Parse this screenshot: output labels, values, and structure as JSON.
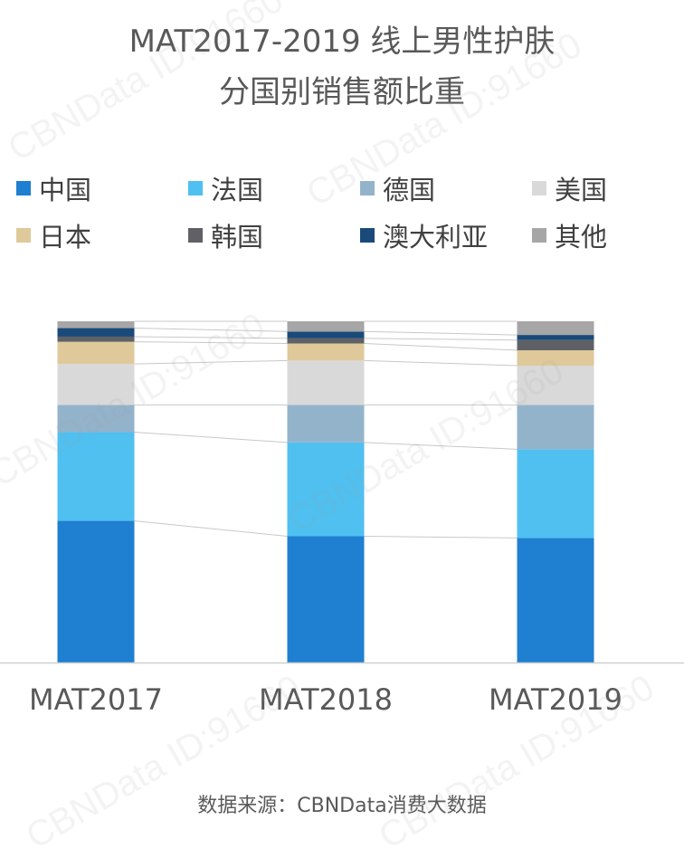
{
  "title_line1": "MAT2017-2019 线上男性护肤",
  "title_line2": "分国别销售额比重",
  "source": "数据来源：CBNData消费大数据",
  "watermark": "CBNData ID:91660",
  "chart_data": {
    "type": "bar",
    "stacked": "percent",
    "categories": [
      "MAT2017",
      "MAT2018",
      "MAT2019"
    ],
    "legend_position": "top",
    "grid": false,
    "ylim": [
      0,
      100
    ],
    "series": [
      {
        "name": "中国",
        "color": "#1f7fd1",
        "values": [
          41.5,
          37.0,
          36.5
        ]
      },
      {
        "name": "法国",
        "color": "#4fc0f0",
        "values": [
          26.0,
          27.5,
          26.0
        ]
      },
      {
        "name": "德国",
        "color": "#93b3cb",
        "values": [
          8.0,
          11.0,
          13.0
        ]
      },
      {
        "name": "美国",
        "color": "#d9d9d9",
        "values": [
          12.0,
          13.0,
          11.5
        ]
      },
      {
        "name": "日本",
        "color": "#dfc99a",
        "values": [
          6.5,
          5.0,
          4.5
        ]
      },
      {
        "name": "韩国",
        "color": "#5f6166",
        "values": [
          1.5,
          1.5,
          3.0
        ]
      },
      {
        "name": "澳大利亚",
        "color": "#1a4a7a",
        "values": [
          2.5,
          2.0,
          1.5
        ]
      },
      {
        "name": "其他",
        "color": "#a6a6a6",
        "values": [
          2.0,
          3.0,
          4.0
        ]
      }
    ]
  }
}
